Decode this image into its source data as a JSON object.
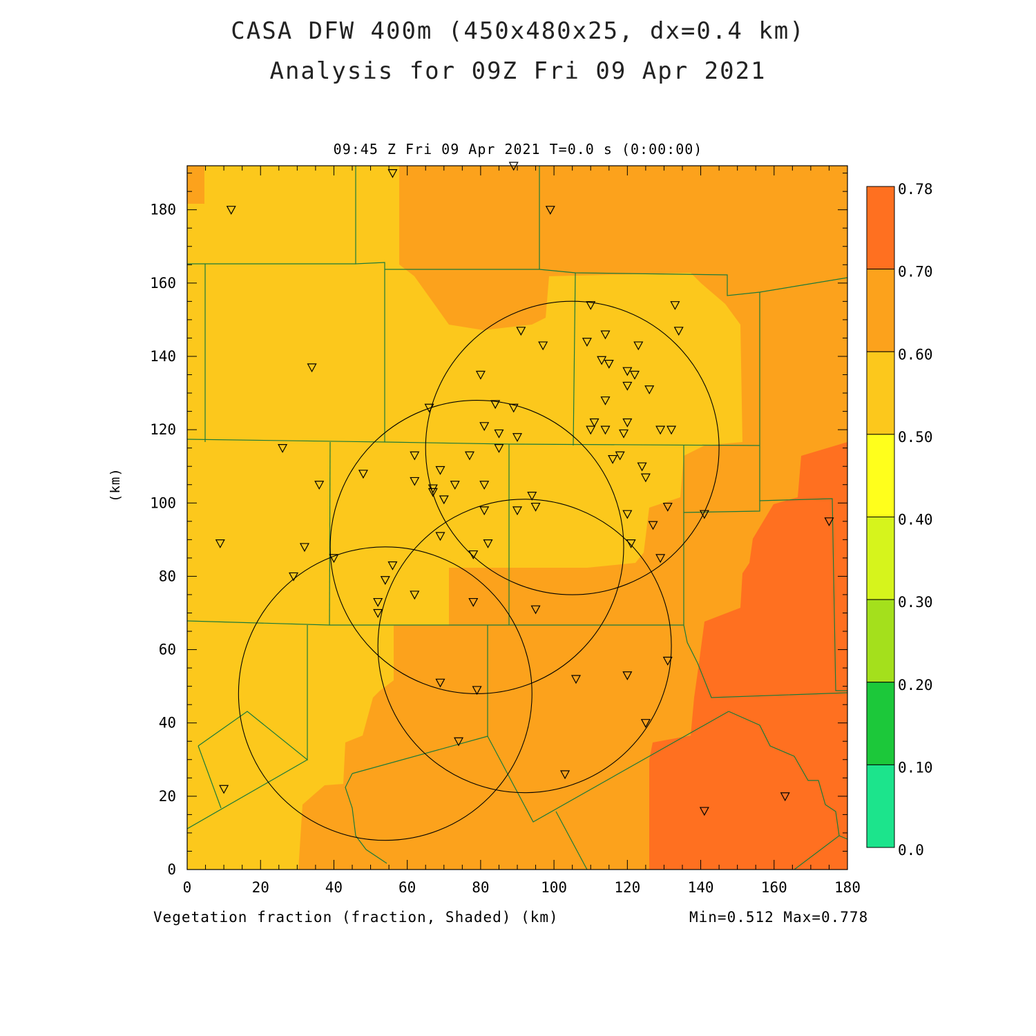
{
  "header": {
    "title_line1": "CASA DFW 400m (450x480x25, dx=0.4 km)",
    "title_line2": "Analysis for 09Z Fri 09 Apr 2021",
    "valid_time": "09:45 Z Fri 09 Apr 2021   T=0.0 s (0:00:00)"
  },
  "footer": {
    "field_label": "Vegetation fraction (fraction, Shaded)  (km)",
    "minmax": "Min=0.512 Max=0.778"
  },
  "axes": {
    "y_unit": "(km)",
    "x_ticks": [
      "0",
      "20",
      "40",
      "60",
      "80",
      "100",
      "120",
      "140",
      "160",
      "180"
    ],
    "y_ticks": [
      "0",
      "20",
      "40",
      "60",
      "80",
      "100",
      "120",
      "140",
      "160",
      "180"
    ],
    "x_range_km": [
      0,
      180
    ],
    "y_range_km": [
      0,
      192
    ]
  },
  "colorbar": {
    "labels": [
      "0.78",
      "0.70",
      "0.60",
      "0.50",
      "0.40",
      "0.30",
      "0.20",
      "0.10",
      "0.0"
    ],
    "colors": [
      "#ff7020",
      "#fca21c",
      "#fcc81c",
      "#ffff1c",
      "#d6f41c",
      "#a4e01c",
      "#1cc83a",
      "#1ce48c"
    ]
  },
  "colors": {
    "low": "#fcc81c",
    "mid": "#fca21c",
    "high": "#ff7020",
    "county_lines": "#1a7a3a",
    "radar_rings": "#000000"
  },
  "radar_rings": [
    {
      "cx_km": 105,
      "cy_km": 115,
      "r_km": 40
    },
    {
      "cx_km": 79,
      "cy_km": 88,
      "r_km": 40
    },
    {
      "cx_km": 92,
      "cy_km": 61,
      "r_km": 40
    },
    {
      "cx_km": 54,
      "cy_km": 48,
      "r_km": 40
    }
  ],
  "stations_km": [
    [
      56,
      190
    ],
    [
      89,
      192
    ],
    [
      12,
      180
    ],
    [
      99,
      180
    ],
    [
      110,
      154
    ],
    [
      133,
      154
    ],
    [
      91,
      147
    ],
    [
      134,
      147
    ],
    [
      114,
      146
    ],
    [
      97,
      143
    ],
    [
      109,
      144
    ],
    [
      123,
      143
    ],
    [
      34,
      137
    ],
    [
      113,
      139
    ],
    [
      115,
      138
    ],
    [
      120,
      136
    ],
    [
      122,
      135
    ],
    [
      80,
      135
    ],
    [
      120,
      132
    ],
    [
      126,
      131
    ],
    [
      114,
      128
    ],
    [
      84,
      127
    ],
    [
      66,
      126
    ],
    [
      89,
      126
    ],
    [
      81,
      121
    ],
    [
      111,
      122
    ],
    [
      110,
      120
    ],
    [
      114,
      120
    ],
    [
      119,
      119
    ],
    [
      120,
      122
    ],
    [
      129,
      120
    ],
    [
      132,
      120
    ],
    [
      85,
      119
    ],
    [
      90,
      118
    ],
    [
      26,
      115
    ],
    [
      85,
      115
    ],
    [
      62,
      113
    ],
    [
      77,
      113
    ],
    [
      118,
      113
    ],
    [
      116,
      112
    ],
    [
      124,
      110
    ],
    [
      69,
      109
    ],
    [
      48,
      108
    ],
    [
      125,
      107
    ],
    [
      62,
      106
    ],
    [
      36,
      105
    ],
    [
      81,
      105
    ],
    [
      73,
      105
    ],
    [
      67,
      104
    ],
    [
      67,
      103
    ],
    [
      94,
      102
    ],
    [
      70,
      101
    ],
    [
      131,
      99
    ],
    [
      95,
      99
    ],
    [
      90,
      98
    ],
    [
      81,
      98
    ],
    [
      120,
      97
    ],
    [
      141,
      97
    ],
    [
      175,
      95
    ],
    [
      127,
      94
    ],
    [
      9,
      89
    ],
    [
      32,
      88
    ],
    [
      82,
      89
    ],
    [
      121,
      89
    ],
    [
      69,
      91
    ],
    [
      78,
      86
    ],
    [
      40,
      85
    ],
    [
      56,
      83
    ],
    [
      129,
      85
    ],
    [
      29,
      80
    ],
    [
      54,
      79
    ],
    [
      62,
      75
    ],
    [
      78,
      73
    ],
    [
      52,
      73
    ],
    [
      95,
      71
    ],
    [
      52,
      70
    ],
    [
      131,
      57
    ],
    [
      120,
      53
    ],
    [
      106,
      52
    ],
    [
      69,
      51
    ],
    [
      79,
      49
    ],
    [
      125,
      40
    ],
    [
      74,
      35
    ],
    [
      103,
      26
    ],
    [
      10,
      22
    ],
    [
      141,
      16
    ],
    [
      163,
      20
    ]
  ]
}
